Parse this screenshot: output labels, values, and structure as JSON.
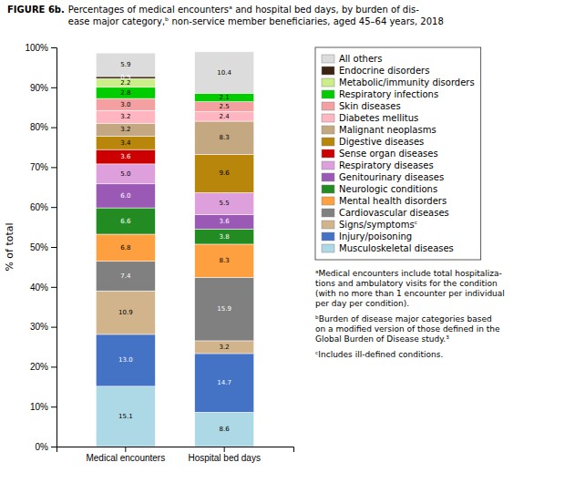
{
  "chart_data": {
    "type": "bar",
    "stacked": true,
    "title": "FIGURE 6b.",
    "subtitle": "Percentages of medical encountersᵃ and hospital bed days, by burden of dis-\nease major category,ᵇ non-service member beneficiaries, aged 45–64 years, 2018",
    "ylabel": "% of total",
    "categories": [
      "Medical encounters",
      "Hospital bed days"
    ],
    "ylim": [
      0,
      100
    ],
    "yticks": [
      {
        "value": 0,
        "label": "0%"
      },
      {
        "value": 10,
        "label": "10%"
      },
      {
        "value": 20,
        "label": "20%"
      },
      {
        "value": 30,
        "label": "30%"
      },
      {
        "value": 40,
        "label": "40%"
      },
      {
        "value": 50,
        "label": "50%"
      },
      {
        "value": 60,
        "label": "60%"
      },
      {
        "value": 70,
        "label": "70%"
      },
      {
        "value": 80,
        "label": "80%"
      },
      {
        "value": 90,
        "label": "90%"
      },
      {
        "value": 100,
        "label": "100%"
      }
    ],
    "grid": false,
    "legend": "right",
    "data_labels": true,
    "series": [
      {
        "name": "Musculoskeletal diseases",
        "color": "#ADD8E6",
        "values": [
          15.1,
          8.6
        ],
        "value_labels": [
          "15.1",
          "8.6"
        ]
      },
      {
        "name": "Injury/poisoning",
        "color": "#4472C4",
        "values": [
          13.0,
          14.7
        ],
        "value_labels": [
          "13.0",
          "14.7"
        ]
      },
      {
        "name": "Signs/symptomsᶜ",
        "color": "#D2B48C",
        "values": [
          10.9,
          3.2
        ],
        "value_labels": [
          "10.9",
          "3.2"
        ]
      },
      {
        "name": "Cardiovascular diseases",
        "color": "#808080",
        "values": [
          7.4,
          15.9
        ],
        "value_labels": [
          "7.4",
          "15.9"
        ]
      },
      {
        "name": "Mental health disorders",
        "color": "#FFA040",
        "values": [
          6.8,
          8.3
        ],
        "value_labels": [
          "6.8",
          "8.3"
        ]
      },
      {
        "name": "Neurologic conditions",
        "color": "#228B22",
        "values": [
          6.6,
          3.8
        ],
        "value_labels": [
          "6.6",
          "3.8"
        ]
      },
      {
        "name": "Genitourinary diseases",
        "color": "#9B59B6",
        "values": [
          6.0,
          3.6
        ],
        "value_labels": [
          "6.0",
          "3.6"
        ]
      },
      {
        "name": "Respiratory diseases",
        "color": "#DDA0DD",
        "values": [
          5.0,
          5.5
        ],
        "value_labels": [
          "5.0",
          "5.5"
        ]
      },
      {
        "name": "Sense organ diseases",
        "color": "#CC0000",
        "values": [
          3.6,
          0.0
        ],
        "value_labels": [
          "3.6",
          null
        ]
      },
      {
        "name": "Digestive diseases",
        "color": "#B8860B",
        "values": [
          3.4,
          9.6
        ],
        "value_labels": [
          "3.4",
          "9.6"
        ]
      },
      {
        "name": "Malignant neoplasms",
        "color": "#C4A882",
        "values": [
          3.2,
          8.3
        ],
        "value_labels": [
          "3.2",
          "8.3"
        ]
      },
      {
        "name": "Diabetes mellitus",
        "color": "#FFB6C1",
        "values": [
          3.2,
          2.4
        ],
        "value_labels": [
          "3.2",
          "2.4"
        ]
      },
      {
        "name": "Skin diseases",
        "color": "#F4A0A0",
        "values": [
          3.0,
          2.5
        ],
        "value_labels": [
          "3.0",
          "2.5"
        ]
      },
      {
        "name": "Respiratory infections",
        "color": "#00CC00",
        "values": [
          2.8,
          2.1
        ],
        "value_labels": [
          "2.8",
          "2.1"
        ]
      },
      {
        "name": "Metabolic/immunity disorders",
        "color": "#CCEE88",
        "values": [
          2.2,
          0.0
        ],
        "value_labels": [
          "2.2",
          null
        ]
      },
      {
        "name": "Endocrine disorders",
        "color": "#3B2314",
        "values": [
          0.5,
          0.0
        ],
        "value_labels": [
          "0.5",
          null
        ]
      },
      {
        "name": "All others",
        "color": "#DCDCDC",
        "values": [
          5.9,
          10.4
        ],
        "value_labels": [
          "5.9",
          "10.4"
        ]
      }
    ],
    "annotations": [
      "ᵃMedical encounters include total hospitaliza-\ntions and ambulatory visits for the condition\n(with no more than 1 encounter per individual\nper day per condition).",
      "ᵇBurden of disease major categories based\non a modified version of those defined in the\nGlobal Burden of Disease study.³",
      "ᶜIncludes ill-defined conditions."
    ]
  }
}
